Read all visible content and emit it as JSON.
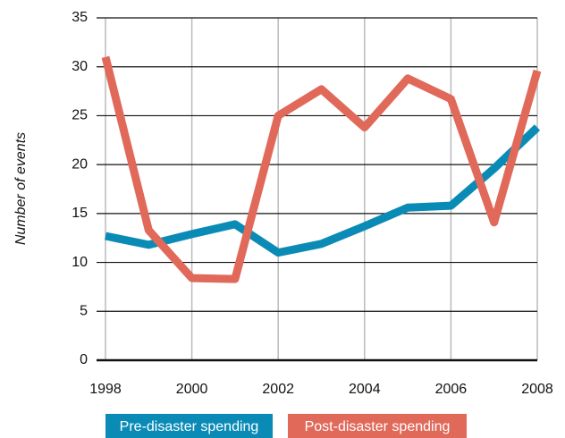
{
  "chart_data": {
    "type": "line",
    "y_label": "Number of events",
    "x": [
      1998,
      1999,
      2000,
      2001,
      2002,
      2003,
      2004,
      2005,
      2006,
      2007,
      2008
    ],
    "series": [
      {
        "name": "Pre-disaster spending",
        "color": "#0a8bb6",
        "values": [
          12.7,
          11.8,
          12.9,
          13.9,
          11.0,
          11.9,
          13.7,
          15.6,
          15.8,
          19.6,
          23.8
        ]
      },
      {
        "name": "Post-disaster spending",
        "color": "#e0695a",
        "values": [
          31.0,
          13.3,
          8.4,
          8.3,
          25.0,
          27.7,
          23.8,
          28.8,
          26.7,
          14.1,
          29.6
        ]
      }
    ],
    "xlim": [
      1998,
      2008
    ],
    "xticks": [
      1998,
      2000,
      2002,
      2004,
      2006,
      2008
    ],
    "ylim": [
      0,
      35
    ],
    "yticks": [
      0,
      5,
      10,
      15,
      20,
      25,
      30,
      35
    ],
    "grid": true,
    "legend": "bottom"
  }
}
